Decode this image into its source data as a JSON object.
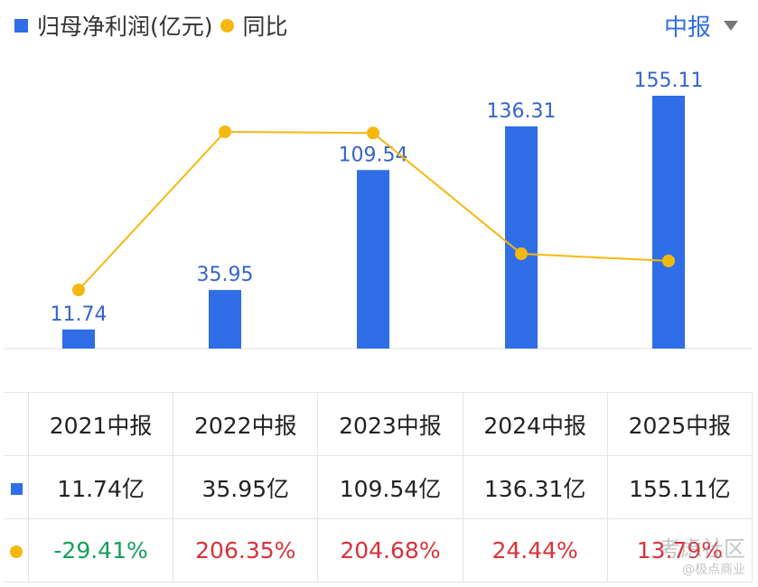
{
  "legend": {
    "bar_label": "归母净利润(亿元)",
    "line_label": "同比",
    "bar_color": "#2f6ee6",
    "line_color": "#f5b80f"
  },
  "period_selector": {
    "label": "中报",
    "icon": "caret-down-icon"
  },
  "chart_data": {
    "type": "bar",
    "categories": [
      "2021中报",
      "2022中报",
      "2023中报",
      "2024中报",
      "2025中报"
    ],
    "series": [
      {
        "name": "归母净利润(亿元)",
        "type": "bar",
        "values": [
          11.74,
          35.95,
          109.54,
          136.31,
          155.11
        ],
        "value_labels": [
          "11.74",
          "35.95",
          "109.54",
          "136.31",
          "155.11"
        ]
      },
      {
        "name": "同比",
        "type": "line",
        "values": [
          -29.41,
          206.35,
          204.68,
          24.44,
          13.79
        ]
      }
    ],
    "title": "",
    "xlabel": "",
    "ylabel": "",
    "grid": false,
    "legend_position": "top-left"
  },
  "table": {
    "headers": [
      "2021中报",
      "2022中报",
      "2023中报",
      "2024中报",
      "2025中报"
    ],
    "profit_row": [
      "11.74亿",
      "35.95亿",
      "109.54亿",
      "136.31亿",
      "155.11亿"
    ],
    "yoy_row": [
      "-29.41%",
      "206.35%",
      "204.68%",
      "24.44%",
      "13.79%"
    ],
    "positive_color": "#d9323a",
    "negative_color": "#14a05a"
  },
  "watermark": {
    "line1": "考虑社区",
    "line2": "@极点商业"
  }
}
